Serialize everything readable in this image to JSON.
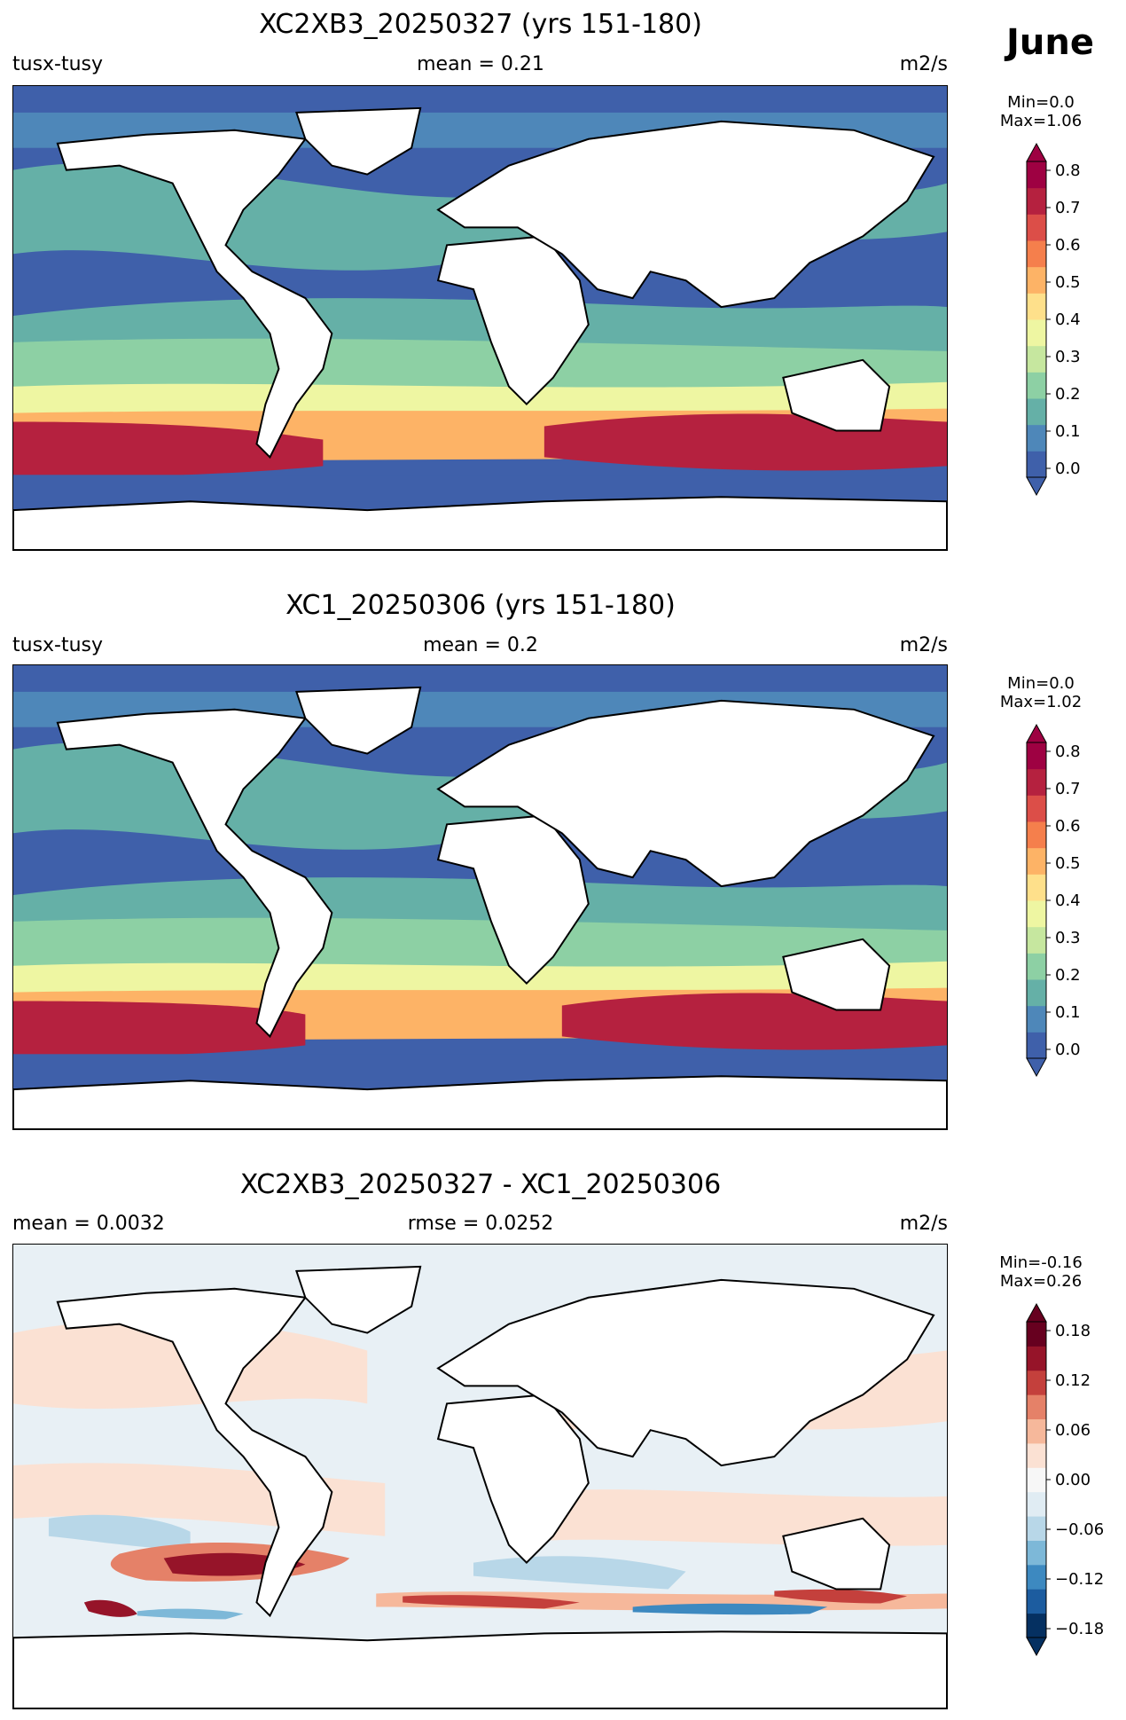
{
  "month": "June",
  "panels": [
    {
      "title": "XC2XB3_20250327 (yrs 151-180)",
      "left_label": "tusx-tusy",
      "center_label": "mean = 0.21",
      "right_label": "m2/s",
      "colorbar": {
        "min_label": "Min=0.0",
        "max_label": "Max=1.06",
        "ticks": [
          "0.8",
          "0.7",
          "0.6",
          "0.5",
          "0.4",
          "0.3",
          "0.2",
          "0.1",
          "0.0"
        ],
        "colors": [
          "#3f60aa",
          "#4e87b9",
          "#65b0a7",
          "#8dd0a4",
          "#c6e79f",
          "#eef6a2",
          "#fee08b",
          "#fdb366",
          "#f57f4c",
          "#dc4e48",
          "#b5213f",
          "#9e0142"
        ]
      }
    },
    {
      "title": "XC1_20250306 (yrs 151-180)",
      "left_label": "tusx-tusy",
      "center_label": "mean = 0.2",
      "right_label": "m2/s",
      "colorbar": {
        "min_label": "Min=0.0",
        "max_label": "Max=1.02",
        "ticks": [
          "0.8",
          "0.7",
          "0.6",
          "0.5",
          "0.4",
          "0.3",
          "0.2",
          "0.1",
          "0.0"
        ],
        "colors": [
          "#3f60aa",
          "#4e87b9",
          "#65b0a7",
          "#8dd0a4",
          "#c6e79f",
          "#eef6a2",
          "#fee08b",
          "#fdb366",
          "#f57f4c",
          "#dc4e48",
          "#b5213f",
          "#9e0142"
        ]
      }
    },
    {
      "title": "XC2XB3_20250327 - XC1_20250306",
      "left_label": "mean = 0.0032",
      "center_label": "rmse = 0.0252",
      "right_label": "m2/s",
      "colorbar": {
        "min_label": "Min=-0.16",
        "max_label": "Max=0.26",
        "ticks": [
          "0.18",
          "0.12",
          "0.06",
          "0.00",
          "−0.06",
          "−0.12",
          "−0.18"
        ],
        "colors": [
          "#053061",
          "#1c5c9f",
          "#3d89c0",
          "#7db8d8",
          "#b8d7e8",
          "#e0ecf3",
          "#f7f7f7",
          "#fbe1d3",
          "#f6b89b",
          "#e58168",
          "#c4403c",
          "#961429",
          "#67001f"
        ]
      }
    }
  ]
}
